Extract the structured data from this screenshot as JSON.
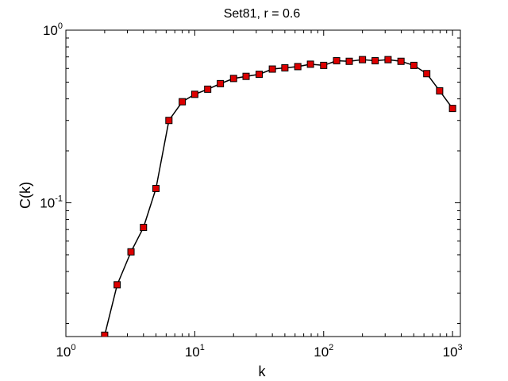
{
  "chart_data": {
    "type": "line",
    "title": "Set81, r = 0.6",
    "xlabel": "k",
    "ylabel": "C(k)",
    "xscale": "log",
    "yscale": "log",
    "xlim": [
      1,
      1150
    ],
    "ylim": [
      0.0168,
      1
    ],
    "grid": false,
    "legend": "none",
    "x_ticks": [
      {
        "base": "10",
        "exp": "0",
        "value": 1
      },
      {
        "base": "10",
        "exp": "1",
        "value": 10
      },
      {
        "base": "10",
        "exp": "2",
        "value": 100
      },
      {
        "base": "10",
        "exp": "3",
        "value": 1000
      }
    ],
    "y_ticks": [
      {
        "base": "10",
        "exp": "-1",
        "value": 0.1
      },
      {
        "base": "10",
        "exp": "0",
        "value": 1
      }
    ],
    "marker": "square",
    "marker_color": "#dd0000",
    "line_color": "#000000",
    "series": [
      {
        "x": [
          2,
          2.5,
          3.2,
          4,
          5,
          6.3,
          8,
          10,
          12.6,
          15.8,
          20,
          25,
          31.6,
          40,
          50,
          63,
          79,
          100,
          126,
          158,
          200,
          251,
          316,
          398,
          501,
          631,
          794,
          1000
        ],
        "y": [
          0.0171,
          0.0335,
          0.052,
          0.072,
          0.121,
          0.3,
          0.385,
          0.425,
          0.455,
          0.49,
          0.525,
          0.54,
          0.555,
          0.595,
          0.605,
          0.615,
          0.635,
          0.625,
          0.665,
          0.66,
          0.675,
          0.665,
          0.675,
          0.66,
          0.625,
          0.56,
          0.445,
          0.352
        ]
      }
    ]
  }
}
